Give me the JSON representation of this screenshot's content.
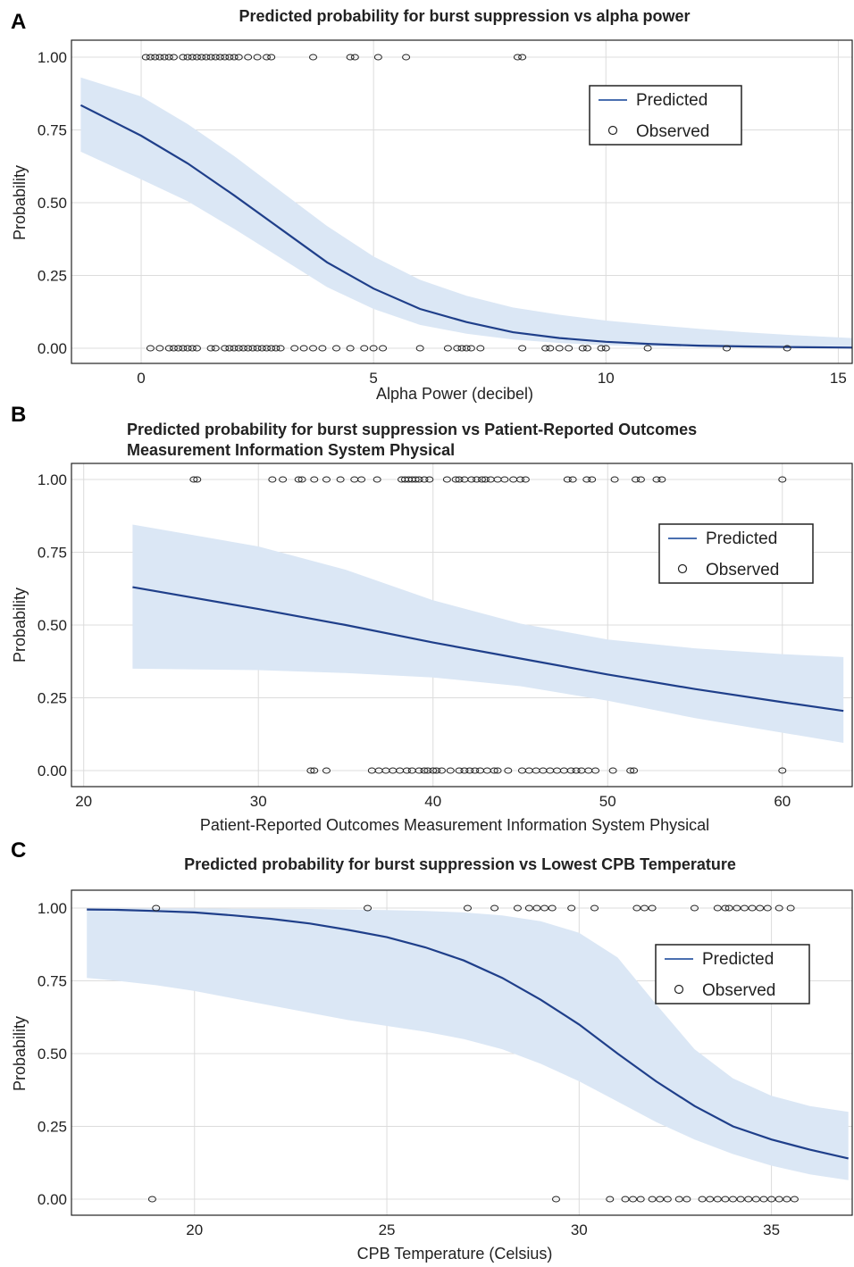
{
  "figure": {
    "colors": {
      "line": "#1f3f8a",
      "band": "#dbe7f5",
      "grid": "#dcdcdc",
      "point_stroke": "#222222",
      "legend_line": "#4a6fb0"
    }
  },
  "chart_data": [
    {
      "panel": "A",
      "type": "line",
      "title_lines": [
        "Predicted probability for burst suppression vs alpha power"
      ],
      "xlabel": "Alpha Power (decibel)",
      "ylabel": "Probability",
      "xlim": [
        -1.5,
        15.3
      ],
      "ylim": [
        -0.05,
        1.05
      ],
      "xticks": [
        0,
        5,
        10,
        15
      ],
      "yticks": [
        0,
        0.25,
        0.5,
        0.75,
        1.0
      ],
      "ytick_labels": [
        "0.00",
        "0.25",
        "0.50",
        "0.75",
        "1.00"
      ],
      "legend": {
        "position": "top-right",
        "line_label": "Predicted",
        "point_label": "Observed"
      },
      "series": [
        {
          "name": "Predicted",
          "x": [
            -1.3,
            0,
            1,
            2,
            3,
            4,
            5,
            6,
            7,
            8,
            9,
            10,
            11,
            12,
            13,
            14,
            15.3
          ],
          "y": [
            0.835,
            0.73,
            0.635,
            0.525,
            0.41,
            0.295,
            0.205,
            0.135,
            0.09,
            0.055,
            0.035,
            0.022,
            0.014,
            0.009,
            0.006,
            0.004,
            0.002
          ],
          "lower": [
            0.675,
            0.58,
            0.505,
            0.41,
            0.31,
            0.21,
            0.135,
            0.08,
            0.05,
            0.03,
            0.018,
            0.01,
            0.006,
            0.004,
            0.002,
            0.001,
            0.0
          ],
          "upper": [
            0.93,
            0.865,
            0.77,
            0.66,
            0.54,
            0.42,
            0.315,
            0.235,
            0.18,
            0.14,
            0.115,
            0.095,
            0.08,
            0.067,
            0.055,
            0.045,
            0.035
          ]
        },
        {
          "name": "Observed",
          "outcome1_x": [
            0.1,
            0.2,
            0.3,
            0.4,
            0.5,
            0.6,
            0.7,
            0.9,
            1.0,
            1.1,
            1.2,
            1.3,
            1.4,
            1.5,
            1.6,
            1.7,
            1.8,
            1.9,
            2.0,
            2.1,
            2.3,
            2.5,
            2.7,
            2.8,
            3.7,
            4.5,
            4.6,
            5.1,
            5.7,
            8.1,
            8.2
          ],
          "outcome0_x": [
            0.2,
            0.4,
            0.6,
            0.7,
            0.8,
            0.9,
            1.0,
            1.1,
            1.2,
            1.5,
            1.6,
            1.8,
            1.9,
            2.0,
            2.1,
            2.2,
            2.3,
            2.4,
            2.5,
            2.6,
            2.7,
            2.8,
            2.9,
            3.0,
            3.3,
            3.5,
            3.7,
            3.9,
            4.2,
            4.5,
            4.8,
            5.0,
            5.2,
            6.0,
            6.6,
            6.8,
            6.9,
            7.0,
            7.1,
            7.3,
            8.2,
            8.7,
            8.8,
            9.0,
            9.2,
            9.5,
            9.6,
            9.9,
            10.0,
            10.9,
            12.6,
            13.9
          ]
        }
      ]
    },
    {
      "panel": "B",
      "type": "line",
      "title_lines": [
        "Predicted probability for burst suppression vs Patient-Reported Outcomes",
        "Measurement Information System Physical"
      ],
      "xlabel": "Patient-Reported Outcomes Measurement Information System Physical",
      "ylabel": "Probability",
      "xlim": [
        19.3,
        64.0
      ],
      "ylim": [
        -0.05,
        1.05
      ],
      "xticks": [
        20,
        30,
        40,
        50,
        60
      ],
      "yticks": [
        0,
        0.25,
        0.5,
        0.75,
        1.0
      ],
      "ytick_labels": [
        "0.00",
        "0.25",
        "0.50",
        "0.75",
        "1.00"
      ],
      "legend": {
        "position": "top-right",
        "line_label": "Predicted",
        "point_label": "Observed"
      },
      "series": [
        {
          "name": "Predicted",
          "x": [
            22.8,
            30,
            35,
            40,
            45,
            50,
            55,
            60,
            63.5
          ],
          "y": [
            0.63,
            0.555,
            0.5,
            0.44,
            0.385,
            0.33,
            0.28,
            0.235,
            0.205
          ],
          "lower": [
            0.35,
            0.345,
            0.335,
            0.32,
            0.29,
            0.24,
            0.18,
            0.13,
            0.095
          ],
          "upper": [
            0.845,
            0.77,
            0.69,
            0.585,
            0.505,
            0.45,
            0.42,
            0.4,
            0.39
          ]
        },
        {
          "name": "Observed",
          "outcome1_x": [
            26.3,
            26.5,
            30.8,
            31.4,
            32.3,
            32.5,
            33.2,
            33.9,
            34.7,
            35.5,
            35.9,
            36.8,
            38.2,
            38.4,
            38.6,
            38.8,
            39.0,
            39.2,
            39.5,
            39.8,
            40.8,
            41.3,
            41.5,
            41.8,
            42.2,
            42.5,
            42.8,
            43.0,
            43.3,
            43.7,
            44.1,
            44.6,
            45.0,
            45.3,
            47.7,
            48.0,
            48.8,
            49.1,
            50.4,
            51.6,
            51.9,
            52.8,
            53.1,
            60.0
          ],
          "outcome0_x": [
            33.0,
            33.2,
            33.9,
            36.5,
            36.9,
            37.3,
            37.7,
            38.1,
            38.5,
            38.8,
            39.2,
            39.5,
            39.7,
            40.0,
            40.2,
            40.5,
            41.0,
            41.5,
            41.8,
            42.1,
            42.4,
            42.7,
            43.1,
            43.5,
            43.7,
            44.3,
            45.1,
            45.5,
            45.9,
            46.3,
            46.7,
            47.1,
            47.5,
            47.9,
            48.2,
            48.5,
            48.9,
            49.3,
            50.3,
            51.3,
            51.5,
            60.0
          ]
        }
      ]
    },
    {
      "panel": "C",
      "type": "line",
      "title_lines": [
        "Predicted probability for burst suppression vs Lowest CPB Temperature"
      ],
      "xlabel": "CPB Temperature (Celsius)",
      "ylabel": "Probability",
      "xlim": [
        16.8,
        37.1
      ],
      "ylim": [
        -0.05,
        1.05
      ],
      "xticks": [
        20,
        25,
        30,
        35
      ],
      "yticks": [
        0,
        0.25,
        0.5,
        0.75,
        1.0
      ],
      "ytick_labels": [
        "0.00",
        "0.25",
        "0.50",
        "0.75",
        "1.00"
      ],
      "legend": {
        "position": "top-right",
        "line_label": "Predicted",
        "point_label": "Observed"
      },
      "series": [
        {
          "name": "Predicted",
          "x": [
            17.2,
            18,
            19,
            20,
            21,
            22,
            23,
            24,
            25,
            26,
            27,
            28,
            29,
            30,
            31,
            32,
            33,
            34,
            35,
            36,
            37.0
          ],
          "y": [
            0.995,
            0.994,
            0.99,
            0.985,
            0.975,
            0.963,
            0.947,
            0.925,
            0.9,
            0.865,
            0.82,
            0.76,
            0.685,
            0.6,
            0.5,
            0.405,
            0.32,
            0.25,
            0.205,
            0.17,
            0.14
          ],
          "lower": [
            0.76,
            0.75,
            0.735,
            0.715,
            0.69,
            0.665,
            0.64,
            0.615,
            0.595,
            0.575,
            0.55,
            0.515,
            0.465,
            0.405,
            0.335,
            0.265,
            0.205,
            0.155,
            0.115,
            0.085,
            0.065
          ],
          "upper": [
            0.999,
            0.999,
            0.999,
            0.999,
            0.998,
            0.998,
            0.997,
            0.995,
            0.993,
            0.99,
            0.985,
            0.975,
            0.955,
            0.915,
            0.83,
            0.67,
            0.515,
            0.415,
            0.355,
            0.32,
            0.3
          ]
        },
        {
          "name": "Observed",
          "outcome1_x": [
            19.0,
            24.5,
            27.1,
            27.8,
            28.4,
            28.7,
            28.9,
            29.1,
            29.3,
            29.8,
            30.4,
            31.5,
            31.7,
            31.9,
            33.0,
            33.6,
            33.8,
            33.9,
            34.1,
            34.3,
            34.5,
            34.7,
            34.9,
            35.2,
            35.5
          ],
          "outcome0_x": [
            18.9,
            29.4,
            30.8,
            31.2,
            31.4,
            31.6,
            31.9,
            32.1,
            32.3,
            32.6,
            32.8,
            33.2,
            33.4,
            33.6,
            33.8,
            34.0,
            34.2,
            34.4,
            34.6,
            34.8,
            35.0,
            35.2,
            35.4,
            35.6
          ]
        }
      ]
    }
  ]
}
